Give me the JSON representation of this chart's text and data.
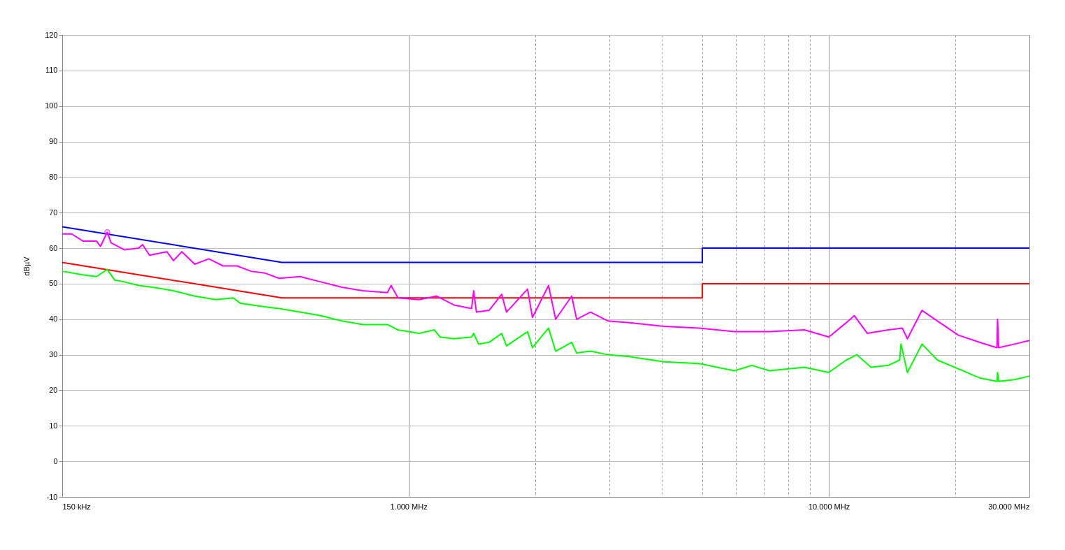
{
  "chart_data": {
    "type": "line",
    "ylabel": "dBµV",
    "log": "x",
    "grid": true,
    "xlim": [
      150,
      30000
    ],
    "ylim": [
      -10,
      120
    ],
    "xticks": [
      {
        "value": 150,
        "label": "150 kHz"
      },
      {
        "value": 1000,
        "label": "1.000 MHz"
      },
      {
        "value": 2000,
        "label": null
      },
      {
        "value": 3000,
        "label": null
      },
      {
        "value": 4000,
        "label": null
      },
      {
        "value": 5000,
        "label": null
      },
      {
        "value": 6000,
        "label": null
      },
      {
        "value": 7000,
        "label": null
      },
      {
        "value": 8000,
        "label": null
      },
      {
        "value": 9000,
        "label": null
      },
      {
        "value": 10000,
        "label": "10.000 MHz"
      },
      {
        "value": 20000,
        "label": null
      },
      {
        "value": 30000,
        "label": "30.000 MHz"
      }
    ],
    "yticks": [
      -10,
      0,
      10,
      20,
      30,
      40,
      50,
      60,
      70,
      80,
      90,
      100,
      110,
      120
    ],
    "series": [
      {
        "color": "#0000ff",
        "x": [
          150,
          500,
          5000,
          5000,
          30000
        ],
        "values": [
          66,
          56,
          56,
          60,
          60
        ]
      },
      {
        "color": "#ff0000",
        "x": [
          150,
          500,
          5000,
          5000,
          30000
        ],
        "values": [
          56,
          46,
          46,
          50,
          50
        ]
      },
      {
        "color": "#ff00ff",
        "x": [
          150,
          158,
          168,
          181,
          185,
          192,
          196,
          211,
          228,
          233,
          242,
          266,
          276,
          289,
          310,
          335,
          362,
          391,
          422,
          455,
          492,
          552,
          619,
          694,
          779,
          891,
          909,
          944,
          1059,
          1166,
          1283,
          1413,
          1429,
          1451,
          1555,
          1666,
          1711,
          1920,
          1972,
          2154,
          2239,
          2445,
          2512,
          2710,
          2985,
          3350,
          4060,
          4920,
          5960,
          7220,
          8750,
          10000,
          11000,
          11500,
          12350,
          13860,
          14960,
          15380,
          16660,
          18130,
          20340,
          22830,
          25120,
          25200,
          25350,
          27650,
          30000
        ],
        "values": [
          64,
          64,
          62,
          62,
          60.5,
          64.5,
          61.5,
          59.5,
          60,
          61,
          58,
          59,
          56.5,
          59,
          55.5,
          57,
          55,
          55,
          53.5,
          53,
          51.5,
          52,
          50.5,
          49,
          48,
          47.5,
          49.5,
          46,
          45.5,
          46.5,
          44,
          43,
          48,
          42,
          42.5,
          47,
          42,
          48.5,
          40.5,
          49.5,
          40,
          46.5,
          40,
          42,
          39.5,
          39,
          38,
          37.5,
          36.5,
          36.5,
          37,
          35,
          39,
          41,
          36,
          37,
          37.5,
          34.5,
          42.5,
          39.5,
          35.5,
          33.5,
          32,
          40,
          32,
          33,
          34
        ]
      },
      {
        "color": "#00ff00",
        "x": [
          150,
          168,
          181,
          192,
          200,
          211,
          228,
          246,
          276,
          310,
          348,
          383,
          398,
          455,
          492,
          552,
          619,
          694,
          779,
          891,
          909,
          944,
          1059,
          1152,
          1189,
          1283,
          1413,
          1429,
          1468,
          1555,
          1666,
          1711,
          1920,
          1972,
          2154,
          2239,
          2445,
          2512,
          2710,
          2985,
          3350,
          4060,
          4920,
          5960,
          6560,
          7220,
          8750,
          10000,
          11000,
          11660,
          12600,
          13860,
          14740,
          14850,
          15380,
          16660,
          18130,
          20340,
          22830,
          25120,
          25200,
          25350,
          27650,
          30000
        ],
        "values": [
          53.5,
          52.5,
          52,
          54,
          51,
          50.5,
          49.5,
          49,
          48,
          46.5,
          45.5,
          46,
          44.5,
          43.5,
          43,
          42,
          41,
          39.5,
          38.5,
          38.5,
          38,
          37,
          36,
          37,
          35,
          34.5,
          35,
          36,
          33,
          33.5,
          36,
          32.5,
          36.5,
          32,
          37.5,
          31,
          33.5,
          30.5,
          31,
          30,
          29.5,
          28,
          27.5,
          25.5,
          27,
          25.5,
          26.5,
          25,
          28.5,
          30,
          26.5,
          27,
          28.5,
          33,
          25,
          33,
          28.5,
          26,
          23.5,
          22.5,
          25,
          22.5,
          23,
          24
        ]
      },
      {
        "type": "scatter",
        "color": "#ff00ff",
        "x": [
          192
        ],
        "values": [
          64.5
        ]
      }
    ]
  }
}
